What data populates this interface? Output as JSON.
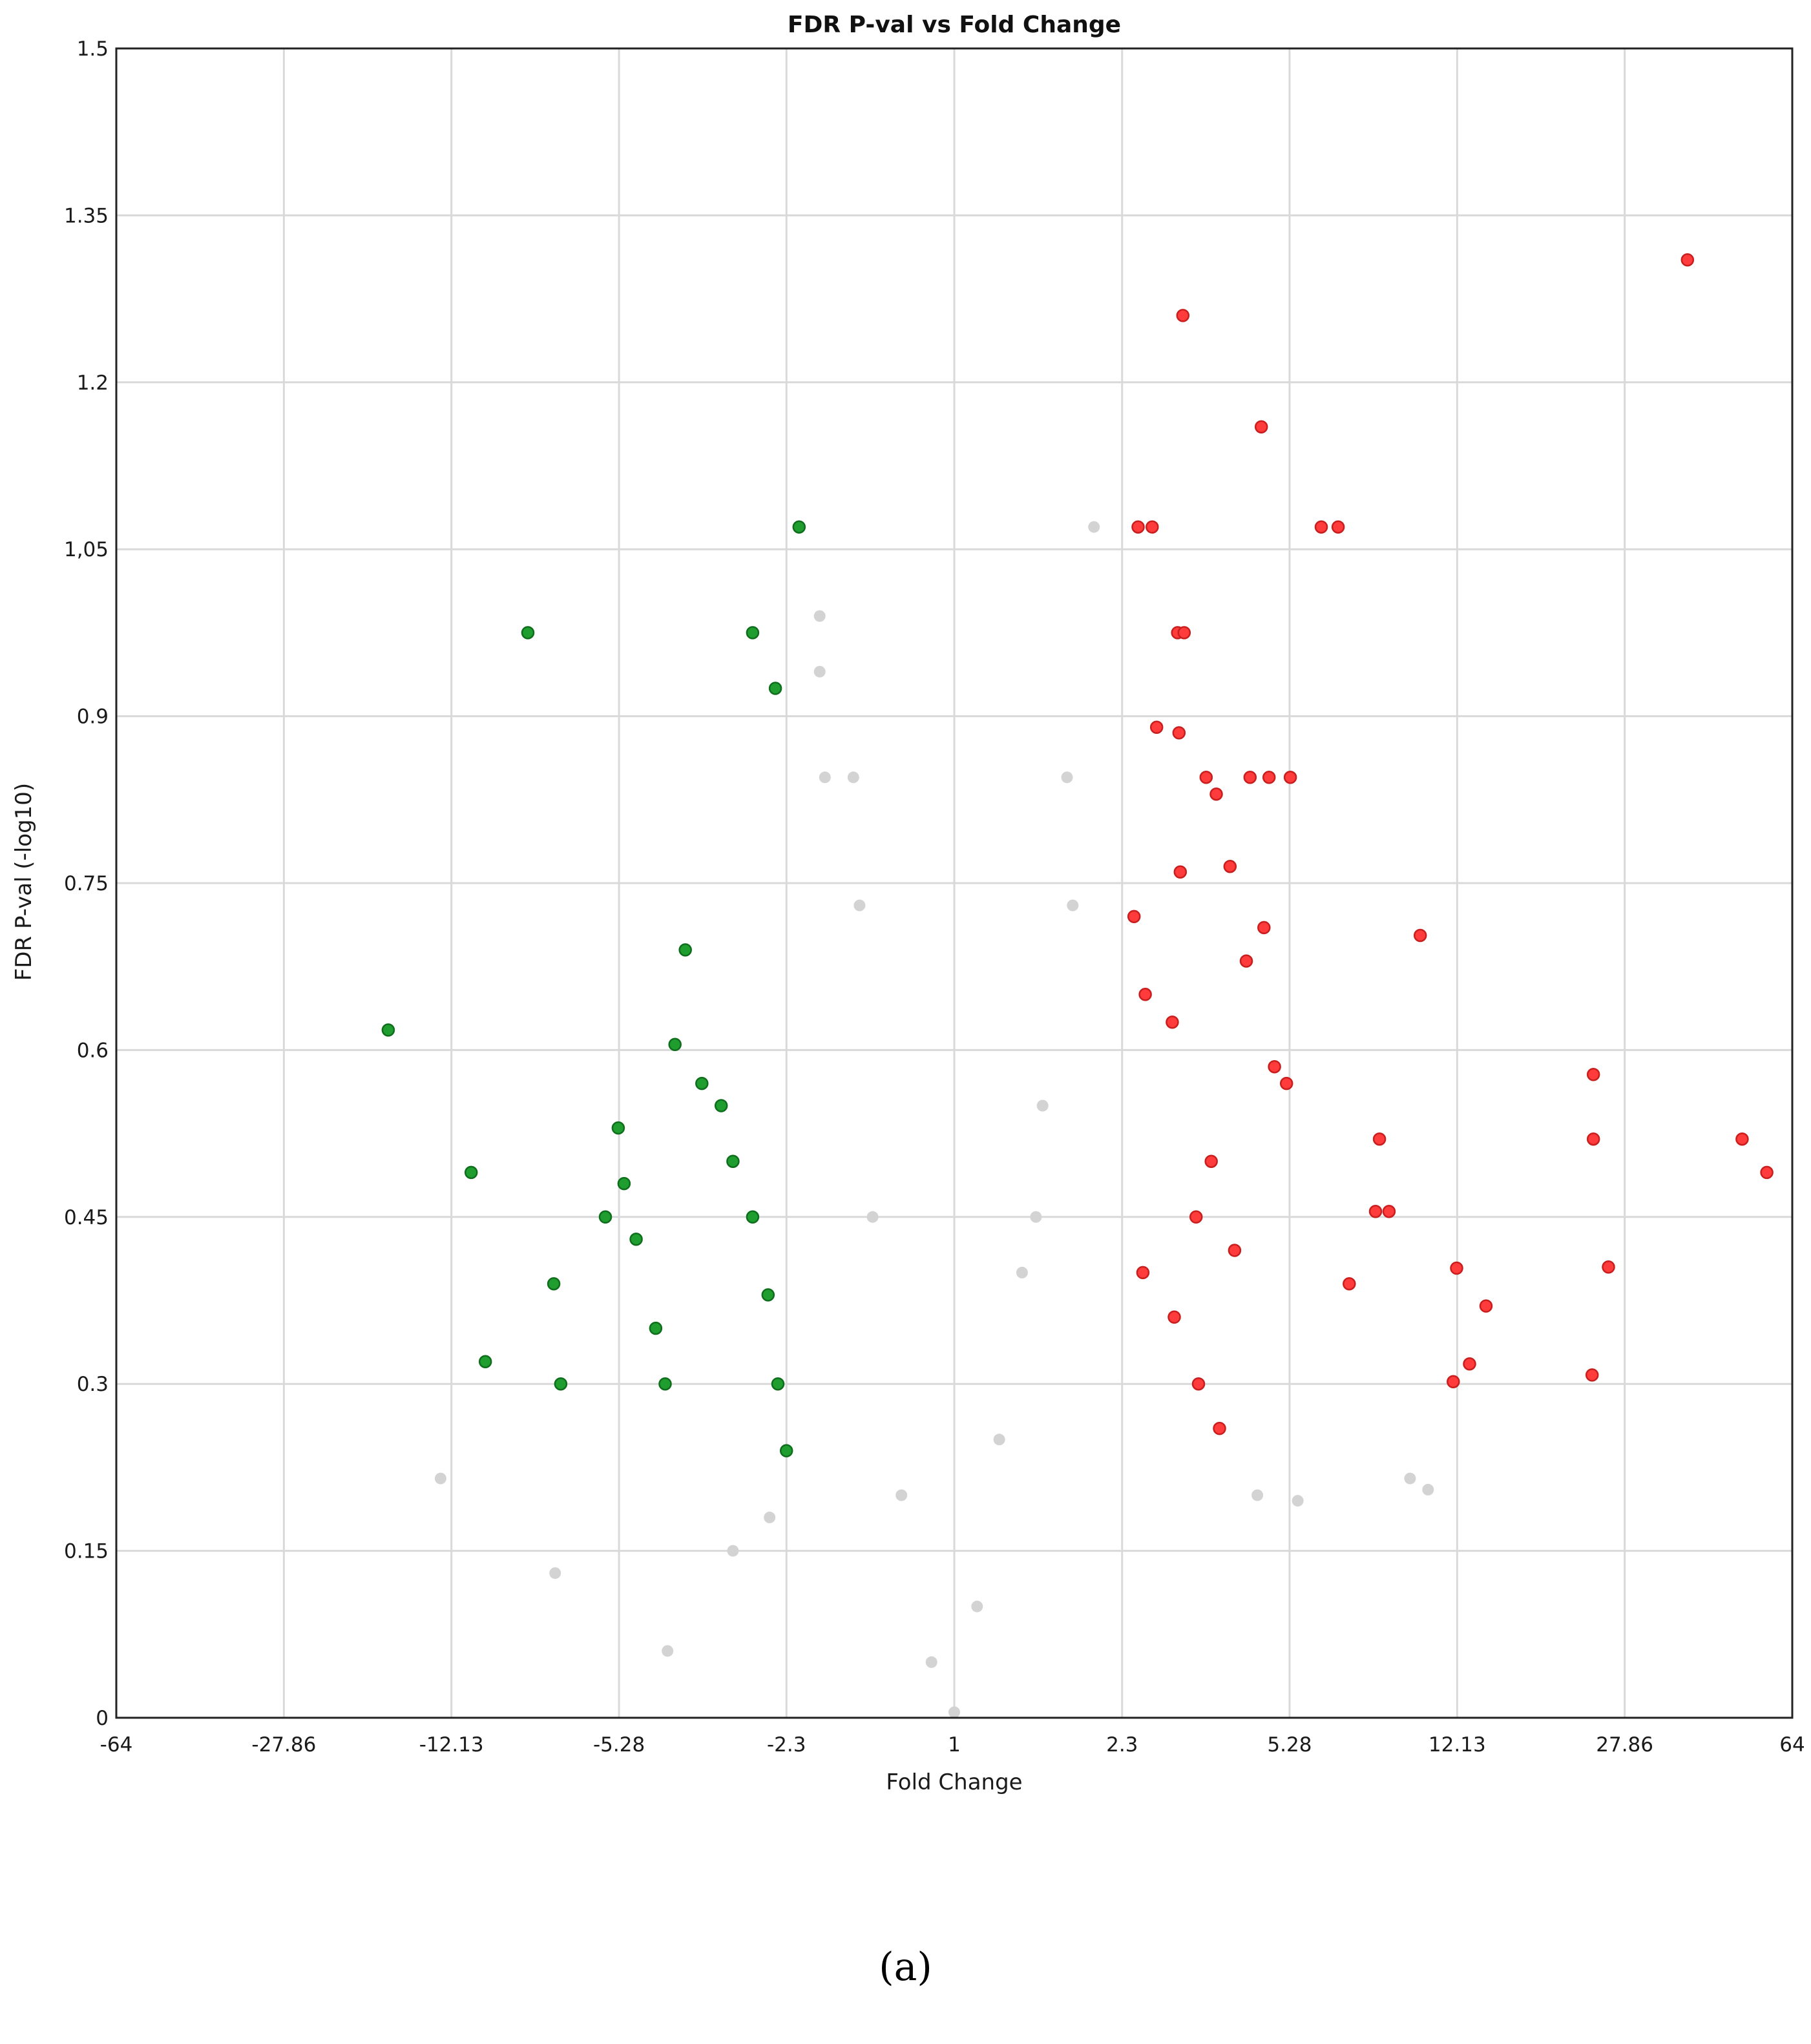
{
  "chart_data": {
    "type": "scatter",
    "title": "FDR P-val vs Fold Change",
    "xlabel": "Fold Change",
    "ylabel": "FDR P-val (-log10)",
    "x_scale": "log2, signed fold change (negative = down-regulated)",
    "x_ticks": [
      "-64",
      "-27.86",
      "-12.13",
      "-5.28",
      "-2.3",
      "1",
      "2.3",
      "5.28",
      "12.13",
      "27.86",
      "64"
    ],
    "y_ticks": [
      "0",
      "0.15",
      "0.3",
      "0.45",
      "0.6",
      "0.75",
      "0.9",
      "1,05",
      "1.2",
      "1.35",
      "1.5"
    ],
    "ylim": [
      0,
      1.5
    ],
    "grid": true,
    "legend": "none",
    "colors": {
      "down": "#1f9e2f",
      "up": "#ff3b3b",
      "ns": "#d3d3d3"
    },
    "series": [
      {
        "color_key": "up",
        "x": [
          38.05,
          23.85,
          10.1,
          12.1,
          14.0,
          49.9,
          56.4,
          23.85,
          25.7,
          11.9,
          12.9,
          23.7,
          3.11,
          4.59,
          2.49,
          2.67,
          3.03,
          3.13,
          6.18,
          6.72,
          2.73,
          3.05,
          4.34,
          5.3,
          4.77,
          3.67,
          3.49,
          3.07,
          3.93,
          4.26,
          4.65,
          2.95,
          2.44,
          2.58,
          4.9,
          8.65,
          5.2,
          8.25,
          8.09,
          3.32,
          2.55,
          7.1,
          3.58,
          4.02,
          2.98,
          3.36,
          3.73
        ],
        "y": [
          1.31,
          0.578,
          0.703,
          0.404,
          0.37,
          0.52,
          0.49,
          0.52,
          0.405,
          0.302,
          0.318,
          0.308,
          1.26,
          1.16,
          1.07,
          1.07,
          0.975,
          0.975,
          1.07,
          1.07,
          0.89,
          0.885,
          0.845,
          0.845,
          0.845,
          0.83,
          0.845,
          0.76,
          0.765,
          0.68,
          0.71,
          0.625,
          0.72,
          0.65,
          0.585,
          0.455,
          0.57,
          0.52,
          0.455,
          0.45,
          0.4,
          0.39,
          0.5,
          0.42,
          0.36,
          0.3,
          0.26
        ]
      },
      {
        "color_key": "down",
        "x": [
          -2.16,
          -2.72,
          -2.43,
          -8.3,
          -16.6,
          -3.8,
          -4.0,
          -11.0,
          -10.25,
          -7.3,
          -7.05,
          -5.3,
          -5.65,
          -5.15,
          -4.85,
          -4.4,
          -4.2,
          -3.5,
          -3.18,
          -3.0,
          -2.72,
          -2.52,
          -2.4,
          -2.3
        ],
        "y": [
          1.07,
          0.975,
          0.925,
          0.975,
          0.618,
          0.69,
          0.605,
          0.49,
          0.32,
          0.39,
          0.3,
          0.53,
          0.45,
          0.48,
          0.43,
          0.35,
          0.3,
          0.57,
          0.55,
          0.5,
          0.45,
          0.38,
          0.3,
          0.24
        ]
      },
      {
        "color_key": "ns",
        "x": [
          -1.95,
          -1.95,
          -1.9,
          -1.65,
          -1.6,
          -12.8,
          -7.25,
          -4.15,
          -3.0,
          -2.5,
          2.0,
          1.75,
          1.8,
          1.55,
          1.4,
          1.25,
          1.12,
          1.0,
          -1.12,
          -1.3,
          -1.5,
          1.5,
          9.6,
          10.5,
          4.5,
          5.5
        ],
        "y": [
          0.99,
          0.94,
          0.845,
          0.845,
          0.73,
          0.215,
          0.13,
          0.06,
          0.15,
          0.18,
          1.07,
          0.845,
          0.73,
          0.55,
          0.4,
          0.25,
          0.1,
          0.005,
          0.05,
          0.2,
          0.45,
          0.45,
          0.215,
          0.205,
          0.2,
          0.195
        ]
      }
    ]
  },
  "caption": "(a)"
}
